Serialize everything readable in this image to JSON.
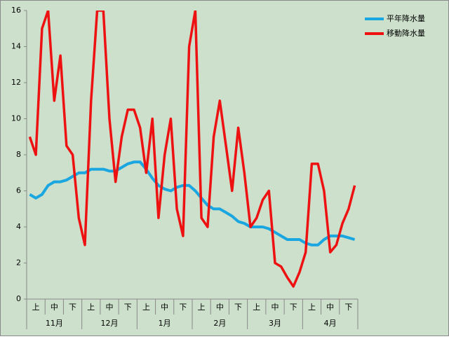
{
  "chart_data": {
    "type": "line",
    "categories": [
      null,
      "上",
      null,
      null,
      "中",
      null,
      null,
      "下",
      null,
      null,
      "上",
      null,
      null,
      "中",
      null,
      null,
      "下",
      null,
      null,
      "上",
      null,
      null,
      "中",
      null,
      null,
      "下",
      null,
      null,
      "上",
      null,
      null,
      "中",
      null,
      null,
      "下",
      null,
      null,
      "上",
      null,
      null,
      "中",
      null,
      null,
      "下",
      null,
      null,
      "上",
      null,
      null,
      "中",
      null,
      null,
      "下",
      null
    ],
    "groups": [
      "11月",
      "12月",
      "1月",
      "2月",
      "3月",
      "4月"
    ],
    "series": [
      {
        "name": "平年降水量",
        "color": "#1aa6e0",
        "values": [
          5.8,
          5.6,
          5.8,
          6.3,
          6.5,
          6.5,
          6.6,
          6.8,
          7.0,
          7.0,
          7.2,
          7.2,
          7.2,
          7.1,
          7.1,
          7.3,
          7.5,
          7.6,
          7.6,
          7.2,
          6.7,
          6.3,
          6.1,
          6.0,
          6.2,
          6.3,
          6.3,
          6.0,
          5.6,
          5.2,
          5.0,
          5.0,
          4.8,
          4.6,
          4.3,
          4.2,
          4.0,
          4.0,
          4.0,
          3.9,
          3.7,
          3.5,
          3.3,
          3.3,
          3.3,
          3.1,
          3.0,
          3.0,
          3.3,
          3.5,
          3.5,
          3.5,
          3.4,
          3.3
        ]
      },
      {
        "name": "移動降水量",
        "color": "#ee1111",
        "values": [
          9,
          8,
          15,
          16,
          11,
          13.5,
          8.5,
          8,
          4.5,
          3,
          11,
          16,
          16,
          10,
          6.5,
          9,
          10.5,
          10.5,
          9.5,
          7,
          10,
          4.5,
          8,
          10,
          5,
          3.5,
          14,
          16,
          4.5,
          4,
          9,
          11,
          8.5,
          6,
          9.5,
          7,
          4,
          4.5,
          5.5,
          6,
          2,
          1.8,
          1.2,
          0.7,
          1.5,
          2.6,
          7.5,
          7.5,
          6,
          2.6,
          3,
          4.2,
          5,
          6.3
        ]
      }
    ],
    "ylim": [
      0,
      16
    ],
    "yticks": [
      0,
      2,
      4,
      6,
      8,
      10,
      12,
      14,
      16
    ],
    "legend": "right"
  }
}
